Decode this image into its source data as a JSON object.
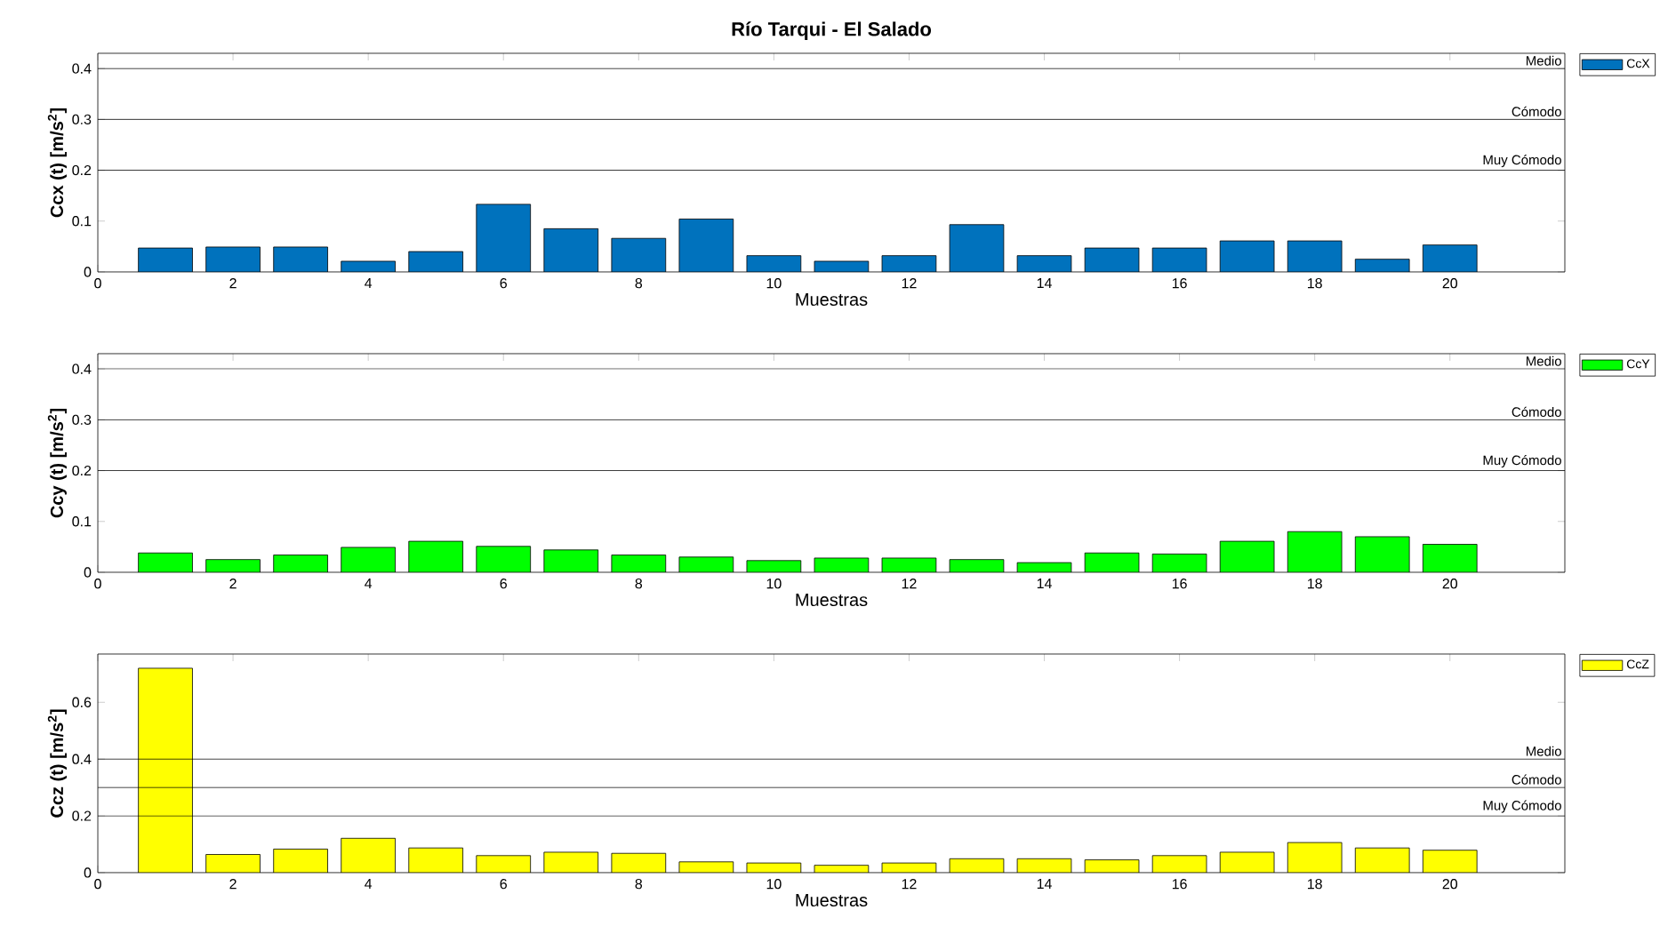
{
  "chart_data": [
    {
      "type": "bar",
      "title": "Río Tarqui - El Salado",
      "xlabel": "Muestras",
      "ylabel": "Ccx (t) [m/s$^{2}$]",
      "x": [
        1,
        2,
        3,
        4,
        5,
        6,
        7,
        8,
        9,
        10,
        11,
        12,
        13,
        14,
        15,
        16,
        17,
        18,
        19,
        20
      ],
      "xlim": [
        0,
        21.7
      ],
      "xticks": [
        0,
        2,
        4,
        6,
        8,
        10,
        12,
        14,
        16,
        18,
        20
      ],
      "ylim": [
        0,
        0.43
      ],
      "yticks": [
        0,
        0.1,
        0.2,
        0.3,
        0.4
      ],
      "legend": "top right",
      "series": [
        {
          "name": "CcX",
          "color": "#0072bd",
          "values": [
            0.047,
            0.049,
            0.049,
            0.021,
            0.04,
            0.133,
            0.085,
            0.066,
            0.104,
            0.032,
            0.021,
            0.032,
            0.093,
            0.032,
            0.047,
            0.047,
            0.061,
            0.061,
            0.025,
            0.053
          ]
        }
      ],
      "ref_lines": [
        {
          "axis": "y",
          "value": 0.2,
          "label": "Muy Cómodo",
          "color": "#000000"
        },
        {
          "axis": "y",
          "value": 0.3,
          "label": "Cómodo",
          "color": "#000000"
        },
        {
          "axis": "y",
          "value": 0.4,
          "label": "Medio",
          "color": "#000000"
        }
      ]
    },
    {
      "type": "bar",
      "xlabel": "Muestras",
      "ylabel": "Ccy (t) [m/s$^{2}$]",
      "x": [
        1,
        2,
        3,
        4,
        5,
        6,
        7,
        8,
        9,
        10,
        11,
        12,
        13,
        14,
        15,
        16,
        17,
        18,
        19,
        20
      ],
      "xlim": [
        0,
        21.7
      ],
      "xticks": [
        0,
        2,
        4,
        6,
        8,
        10,
        12,
        14,
        16,
        18,
        20
      ],
      "ylim": [
        0,
        0.43
      ],
      "yticks": [
        0,
        0.1,
        0.2,
        0.3,
        0.4
      ],
      "legend": "top right",
      "series": [
        {
          "name": "CcY",
          "color": "#00ff00",
          "values": [
            0.038,
            0.025,
            0.034,
            0.049,
            0.061,
            0.051,
            0.044,
            0.034,
            0.03,
            0.023,
            0.028,
            0.028,
            0.025,
            0.019,
            0.038,
            0.036,
            0.061,
            0.08,
            0.07,
            0.055
          ]
        }
      ],
      "ref_lines": [
        {
          "axis": "y",
          "value": 0.2,
          "label": "Muy Cómodo",
          "color": "#000000"
        },
        {
          "axis": "y",
          "value": 0.3,
          "label": "Cómodo",
          "color": "#000000"
        },
        {
          "axis": "y",
          "value": 0.4,
          "label": "Medio",
          "color": "#000000"
        }
      ]
    },
    {
      "type": "bar",
      "xlabel": "Muestras",
      "ylabel": "Ccz (t) [m/s$^{2}$]",
      "x": [
        1,
        2,
        3,
        4,
        5,
        6,
        7,
        8,
        9,
        10,
        11,
        12,
        13,
        14,
        15,
        16,
        17,
        18,
        19,
        20
      ],
      "xlim": [
        0,
        21.7
      ],
      "xticks": [
        0,
        2,
        4,
        6,
        8,
        10,
        12,
        14,
        16,
        18,
        20
      ],
      "ylim": [
        0,
        0.77
      ],
      "yticks": [
        0,
        0.2,
        0.4,
        0.6
      ],
      "legend": "top right",
      "series": [
        {
          "name": "CcZ",
          "color": "#ffff00",
          "values": [
            0.72,
            0.064,
            0.083,
            0.121,
            0.087,
            0.06,
            0.072,
            0.068,
            0.038,
            0.034,
            0.026,
            0.034,
            0.049,
            0.049,
            0.045,
            0.06,
            0.072,
            0.106,
            0.087,
            0.079
          ]
        }
      ],
      "ref_lines": [
        {
          "axis": "y",
          "value": 0.2,
          "label": "Muy Cómodo",
          "color": "#000000"
        },
        {
          "axis": "y",
          "value": 0.3,
          "label": "Cómodo",
          "color": "#000000"
        },
        {
          "axis": "y",
          "value": 0.4,
          "label": "Medio",
          "color": "#000000"
        }
      ]
    }
  ]
}
